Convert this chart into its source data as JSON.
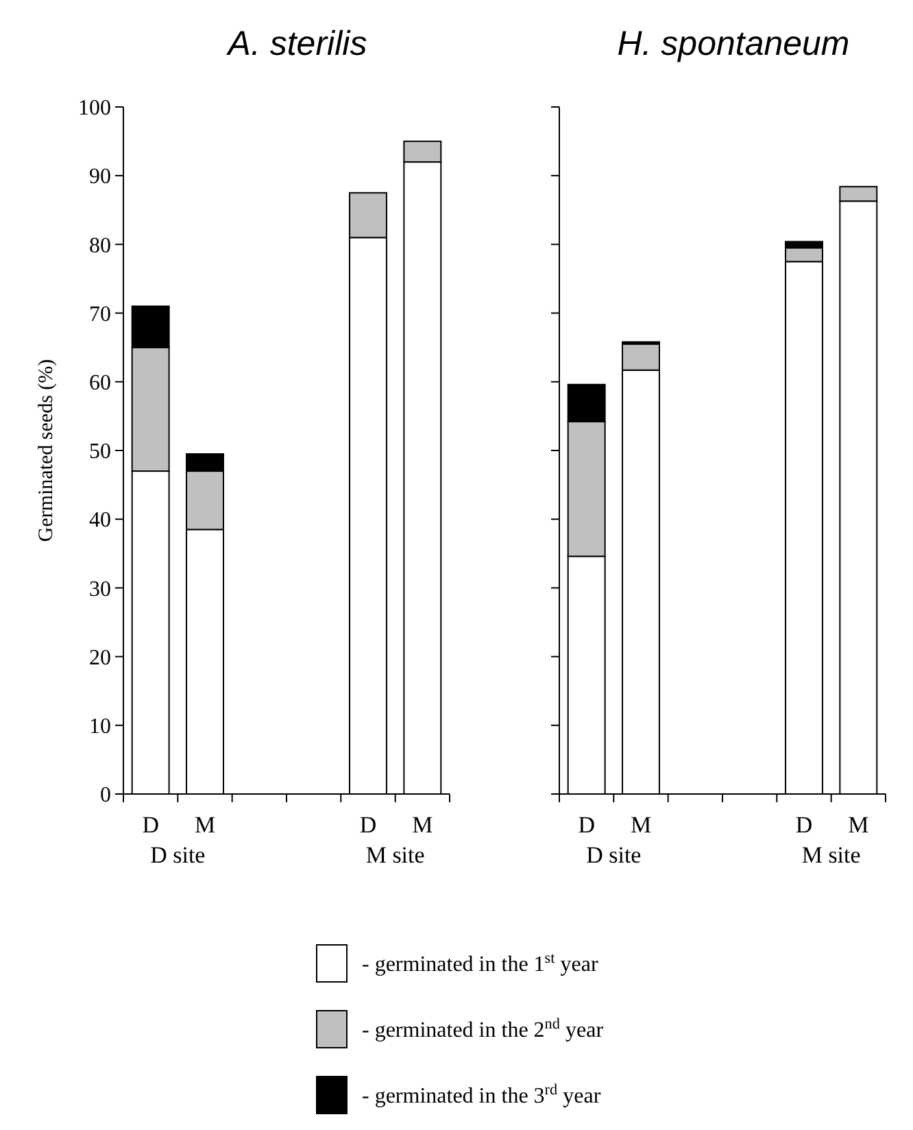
{
  "chart_data": [
    {
      "type": "bar",
      "title": "A. sterilis",
      "ylabel": "Germinated seeds (%)",
      "stacked": true,
      "categories": [
        "D",
        "M",
        null,
        null,
        "D",
        "M"
      ],
      "ylim": [
        0,
        100
      ],
      "yticks": [
        0,
        10,
        20,
        30,
        40,
        50,
        60,
        70,
        80,
        90,
        100
      ],
      "legend": "bottom",
      "annotations": [
        "D site",
        "M site"
      ],
      "series": [
        {
          "name": "- germinated in the 1$^{st}$ year",
          "color": "#ffffff",
          "values": [
            47,
            38.5,
            null,
            null,
            81,
            92
          ]
        },
        {
          "name": "- germinated in the 2$^{nd}$ year",
          "color": "#c0c0c0",
          "values": [
            18,
            8.5,
            null,
            null,
            6.5,
            3
          ]
        },
        {
          "name": "- germinated in the 3$^{rd}$ year",
          "color": "#000000",
          "values": [
            6,
            2.5,
            null,
            null,
            0,
            0
          ]
        }
      ]
    },
    {
      "type": "bar",
      "title": "H. spontaneum",
      "stacked": true,
      "categories": [
        "D",
        "M",
        null,
        null,
        "D",
        "M"
      ],
      "ylim": [
        0,
        100
      ],
      "yticks": [
        0,
        10,
        20,
        30,
        40,
        50,
        60,
        70,
        80,
        90,
        100
      ],
      "tick_labels": "x",
      "annotations": [
        "D site",
        "M site"
      ],
      "series": [
        {
          "color": "#ffffff",
          "values": [
            34.6,
            61.7,
            null,
            null,
            77.5,
            86.3
          ]
        },
        {
          "color": "#c0c0c0",
          "values": [
            19.6,
            3.8,
            null,
            null,
            2,
            2.1
          ]
        },
        {
          "color": "#000000",
          "values": [
            5.4,
            0.3,
            null,
            null,
            0.9,
            0
          ]
        }
      ]
    }
  ]
}
